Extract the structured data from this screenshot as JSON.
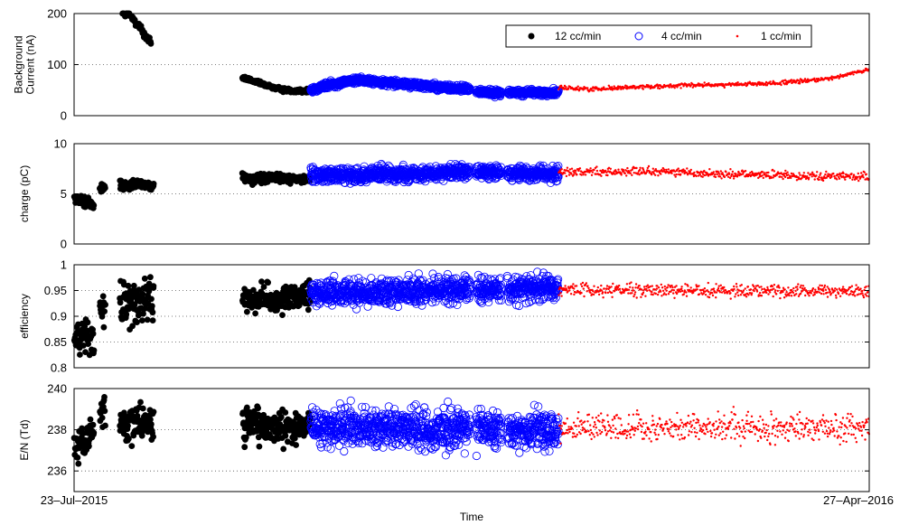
{
  "chart_data": {
    "type": "scatter",
    "xlabel": "Time",
    "x_tick_labels": [
      "23–Jul–2015",
      "27–Apr–2016"
    ],
    "x_range": [
      "2015-07-23",
      "2016-04-27"
    ],
    "grid": "horizontal dotted",
    "legend": {
      "placement": "top-right of first panel",
      "entries": [
        {
          "label": "12 cc/min",
          "marker": "filled-circle",
          "color": "#000000"
        },
        {
          "label": "4 cc/min",
          "marker": "open-circle",
          "color": "#0000ff"
        },
        {
          "label": "1 cc/min",
          "marker": "dot",
          "color": "#ff0000"
        }
      ]
    },
    "series_periods": [
      {
        "name": "12 cc/min",
        "segments": [
          [
            "2015-07-23",
            "2015-07-30"
          ],
          [
            "2015-08-01",
            "2015-08-03"
          ],
          [
            "2015-08-08",
            "2015-09-19"
          ],
          [
            "2015-09-20",
            "2015-10-04"
          ],
          [
            "2015-10-04",
            "2015-10-14"
          ]
        ]
      },
      {
        "name": "4 cc/min",
        "segments": [
          [
            "2015-10-14",
            "2015-12-09"
          ],
          [
            "2015-12-11",
            "2015-12-20"
          ],
          [
            "2015-12-22",
            "2016-01-09"
          ]
        ]
      },
      {
        "name": "1 cc/min",
        "segments": [
          [
            "2016-01-09",
            "2016-04-27"
          ]
        ]
      }
    ],
    "panels": [
      {
        "ylabel_lines": [
          "Background",
          "Current (nA)"
        ],
        "ylim": [
          0,
          200
        ],
        "yticks": [
          0,
          100,
          200
        ],
        "ytick_labels": [
          "0",
          "100",
          "200"
        ],
        "profiles": [
          {
            "series": "12 cc/min",
            "points": [
              [
                "2015-08-09",
                200
              ],
              [
                "2015-08-11",
                198
              ],
              [
                "2015-08-14",
                182
              ],
              [
                "2015-08-16",
                165
              ],
              [
                "2015-08-19",
                140
              ]
            ],
            "noise": 4
          },
          {
            "series": "12 cc/min",
            "points": [
              [
                "2015-09-20",
                75
              ],
              [
                "2015-09-25",
                65
              ],
              [
                "2015-10-01",
                55
              ],
              [
                "2015-10-05",
                50
              ],
              [
                "2015-10-14",
                48
              ]
            ],
            "noise": 2
          },
          {
            "series": "4 cc/min",
            "points": [
              [
                "2015-10-14",
                50
              ],
              [
                "2015-10-20",
                60
              ],
              [
                "2015-10-30",
                70
              ],
              [
                "2015-11-10",
                65
              ],
              [
                "2015-11-20",
                60
              ],
              [
                "2015-11-30",
                55
              ],
              [
                "2015-12-09",
                52
              ],
              [
                "2015-12-11",
                46
              ],
              [
                "2015-12-20",
                45
              ],
              [
                "2016-01-09",
                45
              ]
            ],
            "noise": 3
          },
          {
            "series": "1 cc/min",
            "points": [
              [
                "2016-01-09",
                55
              ],
              [
                "2016-01-20",
                52
              ],
              [
                "2016-02-01",
                55
              ],
              [
                "2016-02-15",
                58
              ],
              [
                "2016-03-01",
                60
              ],
              [
                "2016-03-20",
                62
              ],
              [
                "2016-04-05",
                68
              ],
              [
                "2016-04-15",
                75
              ],
              [
                "2016-04-27",
                90
              ]
            ],
            "noise": 2
          }
        ]
      },
      {
        "ylabel_lines": [
          "charge (pC)"
        ],
        "ylim": [
          0,
          10
        ],
        "yticks": [
          0,
          5,
          10
        ],
        "ytick_labels": [
          "0",
          "5",
          "10"
        ],
        "profiles": [
          {
            "series": "12 cc/min",
            "points": [
              [
                "2015-07-23",
                4.5
              ],
              [
                "2015-07-30",
                4.0
              ],
              [
                "2015-08-01",
                5.6
              ],
              [
                "2015-08-03",
                5.8
              ],
              [
                "2015-08-08",
                5.8
              ],
              [
                "2015-08-20",
                5.9
              ]
            ],
            "noise": 0.25
          },
          {
            "series": "12 cc/min",
            "points": [
              [
                "2015-09-20",
                6.5
              ],
              [
                "2015-10-14",
                6.5
              ]
            ],
            "noise": 0.25
          },
          {
            "series": "4 cc/min",
            "points": [
              [
                "2015-10-14",
                6.8
              ],
              [
                "2015-11-15",
                7.0
              ],
              [
                "2015-12-09",
                7.2
              ],
              [
                "2016-01-09",
                7.0
              ]
            ],
            "noise": 0.35
          },
          {
            "series": "1 cc/min",
            "points": [
              [
                "2016-01-09",
                7.2
              ],
              [
                "2016-02-15",
                7.2
              ],
              [
                "2016-03-15",
                6.9
              ],
              [
                "2016-04-27",
                6.7
              ]
            ],
            "noise": 0.2
          }
        ]
      },
      {
        "ylabel_lines": [
          "efficiency"
        ],
        "ylim": [
          0.8,
          1
        ],
        "yticks": [
          0.8,
          0.85,
          0.9,
          0.95,
          1
        ],
        "ytick_labels": [
          "0.8",
          "0.85",
          "0.9",
          "0.95",
          "1"
        ],
        "profiles": [
          {
            "series": "12 cc/min",
            "points": [
              [
                "2015-07-23",
                0.86
              ],
              [
                "2015-07-30",
                0.86
              ],
              [
                "2015-08-01",
                0.92
              ],
              [
                "2015-08-20",
                0.93
              ]
            ],
            "noise": 0.02
          },
          {
            "series": "12 cc/min",
            "points": [
              [
                "2015-09-20",
                0.935
              ],
              [
                "2015-10-14",
                0.935
              ]
            ],
            "noise": 0.012
          },
          {
            "series": "4 cc/min",
            "points": [
              [
                "2015-10-14",
                0.945
              ],
              [
                "2016-01-09",
                0.955
              ]
            ],
            "noise": 0.012
          },
          {
            "series": "1 cc/min",
            "points": [
              [
                "2016-01-09",
                0.952
              ],
              [
                "2016-04-27",
                0.948
              ]
            ],
            "noise": 0.006
          }
        ]
      },
      {
        "ylabel_lines": [
          "E/N (Td)"
        ],
        "ylim": [
          235,
          240
        ],
        "yticks": [
          236,
          238,
          240
        ],
        "ytick_labels": [
          "236",
          "238",
          "240"
        ],
        "profiles": [
          {
            "series": "12 cc/min",
            "points": [
              [
                "2015-07-23",
                237.0
              ],
              [
                "2015-07-30",
                238.0
              ],
              [
                "2015-08-02",
                239.0
              ],
              [
                "2015-08-04",
                239.5
              ],
              [
                "2015-08-08",
                238.3
              ],
              [
                "2015-08-20",
                238.3
              ]
            ],
            "noise": 0.4
          },
          {
            "series": "12 cc/min",
            "points": [
              [
                "2015-09-20",
                238.2
              ],
              [
                "2015-10-14",
                238.2
              ]
            ],
            "noise": 0.4
          },
          {
            "series": "4 cc/min",
            "points": [
              [
                "2015-10-14",
                238.1
              ],
              [
                "2016-01-09",
                238.0
              ]
            ],
            "noise": 0.45
          },
          {
            "series": "1 cc/min",
            "points": [
              [
                "2016-01-09",
                238.1
              ],
              [
                "2016-04-27",
                238.1
              ]
            ],
            "noise": 0.35
          }
        ]
      }
    ]
  }
}
